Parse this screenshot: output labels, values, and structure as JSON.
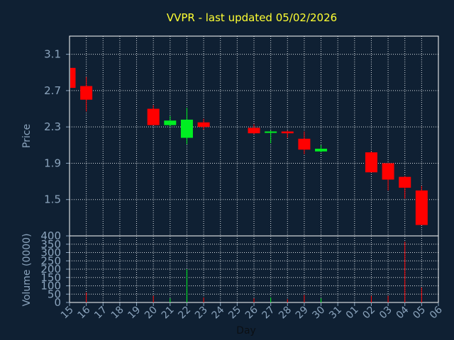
{
  "chart_data": {
    "type": "candlestick",
    "title": "VVPR - last updated 05/02/2026",
    "xlabel": "Day",
    "price_panel": {
      "ylabel": "Price",
      "ylim": [
        1.1,
        3.3
      ],
      "yticks": [
        "3.1",
        "2.7",
        "2.3",
        "1.9",
        "1.5"
      ]
    },
    "volume_panel": {
      "ylabel": "Volume (0000)",
      "ylim": [
        0,
        400
      ],
      "yticks": [
        "400",
        "350",
        "300",
        "250",
        "200",
        "150",
        "100",
        "50",
        "0"
      ]
    },
    "x_ticks": [
      "15",
      "16",
      "17",
      "18",
      "19",
      "20",
      "21",
      "22",
      "23",
      "24",
      "25",
      "26",
      "27",
      "28",
      "29",
      "30",
      "31",
      "01",
      "02",
      "03",
      "04",
      "05",
      "06"
    ],
    "candles": [
      {
        "x": "15",
        "open": 2.95,
        "close": 2.73,
        "high": 2.95,
        "low": 2.73,
        "volume": 0
      },
      {
        "x": "16",
        "open": 2.75,
        "close": 2.6,
        "high": 2.85,
        "low": 2.47,
        "volume": 60
      },
      {
        "x": "20",
        "open": 2.5,
        "close": 2.32,
        "high": 2.54,
        "low": 2.32,
        "volume": 40
      },
      {
        "x": "21",
        "open": 2.32,
        "close": 2.37,
        "high": 2.42,
        "low": 2.3,
        "volume": 25
      },
      {
        "x": "22",
        "open": 2.18,
        "close": 2.38,
        "high": 2.51,
        "low": 2.11,
        "volume": 200
      },
      {
        "x": "23",
        "open": 2.35,
        "close": 2.3,
        "high": 2.39,
        "low": 2.27,
        "volume": 30
      },
      {
        "x": "26",
        "open": 2.29,
        "close": 2.23,
        "high": 2.33,
        "low": 2.22,
        "volume": 25
      },
      {
        "x": "27",
        "open": 2.24,
        "close": 2.25,
        "high": 2.26,
        "low": 2.12,
        "volume": 30
      },
      {
        "x": "28",
        "open": 2.25,
        "close": 2.23,
        "high": 2.26,
        "low": 2.18,
        "volume": 20
      },
      {
        "x": "29",
        "open": 2.17,
        "close": 2.05,
        "high": 2.25,
        "low": 2.0,
        "volume": 45
      },
      {
        "x": "30",
        "open": 2.03,
        "close": 2.06,
        "high": 2.1,
        "low": 2.02,
        "volume": 25
      },
      {
        "x": "02",
        "open": 2.02,
        "close": 1.8,
        "high": 2.03,
        "low": 1.8,
        "volume": 40
      },
      {
        "x": "03",
        "open": 1.9,
        "close": 1.72,
        "high": 1.9,
        "low": 1.6,
        "volume": 40
      },
      {
        "x": "04",
        "open": 1.75,
        "close": 1.63,
        "high": 1.76,
        "low": 1.51,
        "volume": 365
      },
      {
        "x": "05",
        "open": 1.6,
        "close": 1.22,
        "high": 1.65,
        "low": 1.22,
        "volume": 90
      }
    ],
    "grid": true,
    "colors": {
      "background": "#0f2033",
      "grid": "#d8dde2",
      "frame": "#ffffff",
      "up": "#00ee22",
      "down": "#ff0000",
      "title": "#ffff33",
      "axis_text": "#8ba4bd"
    }
  }
}
